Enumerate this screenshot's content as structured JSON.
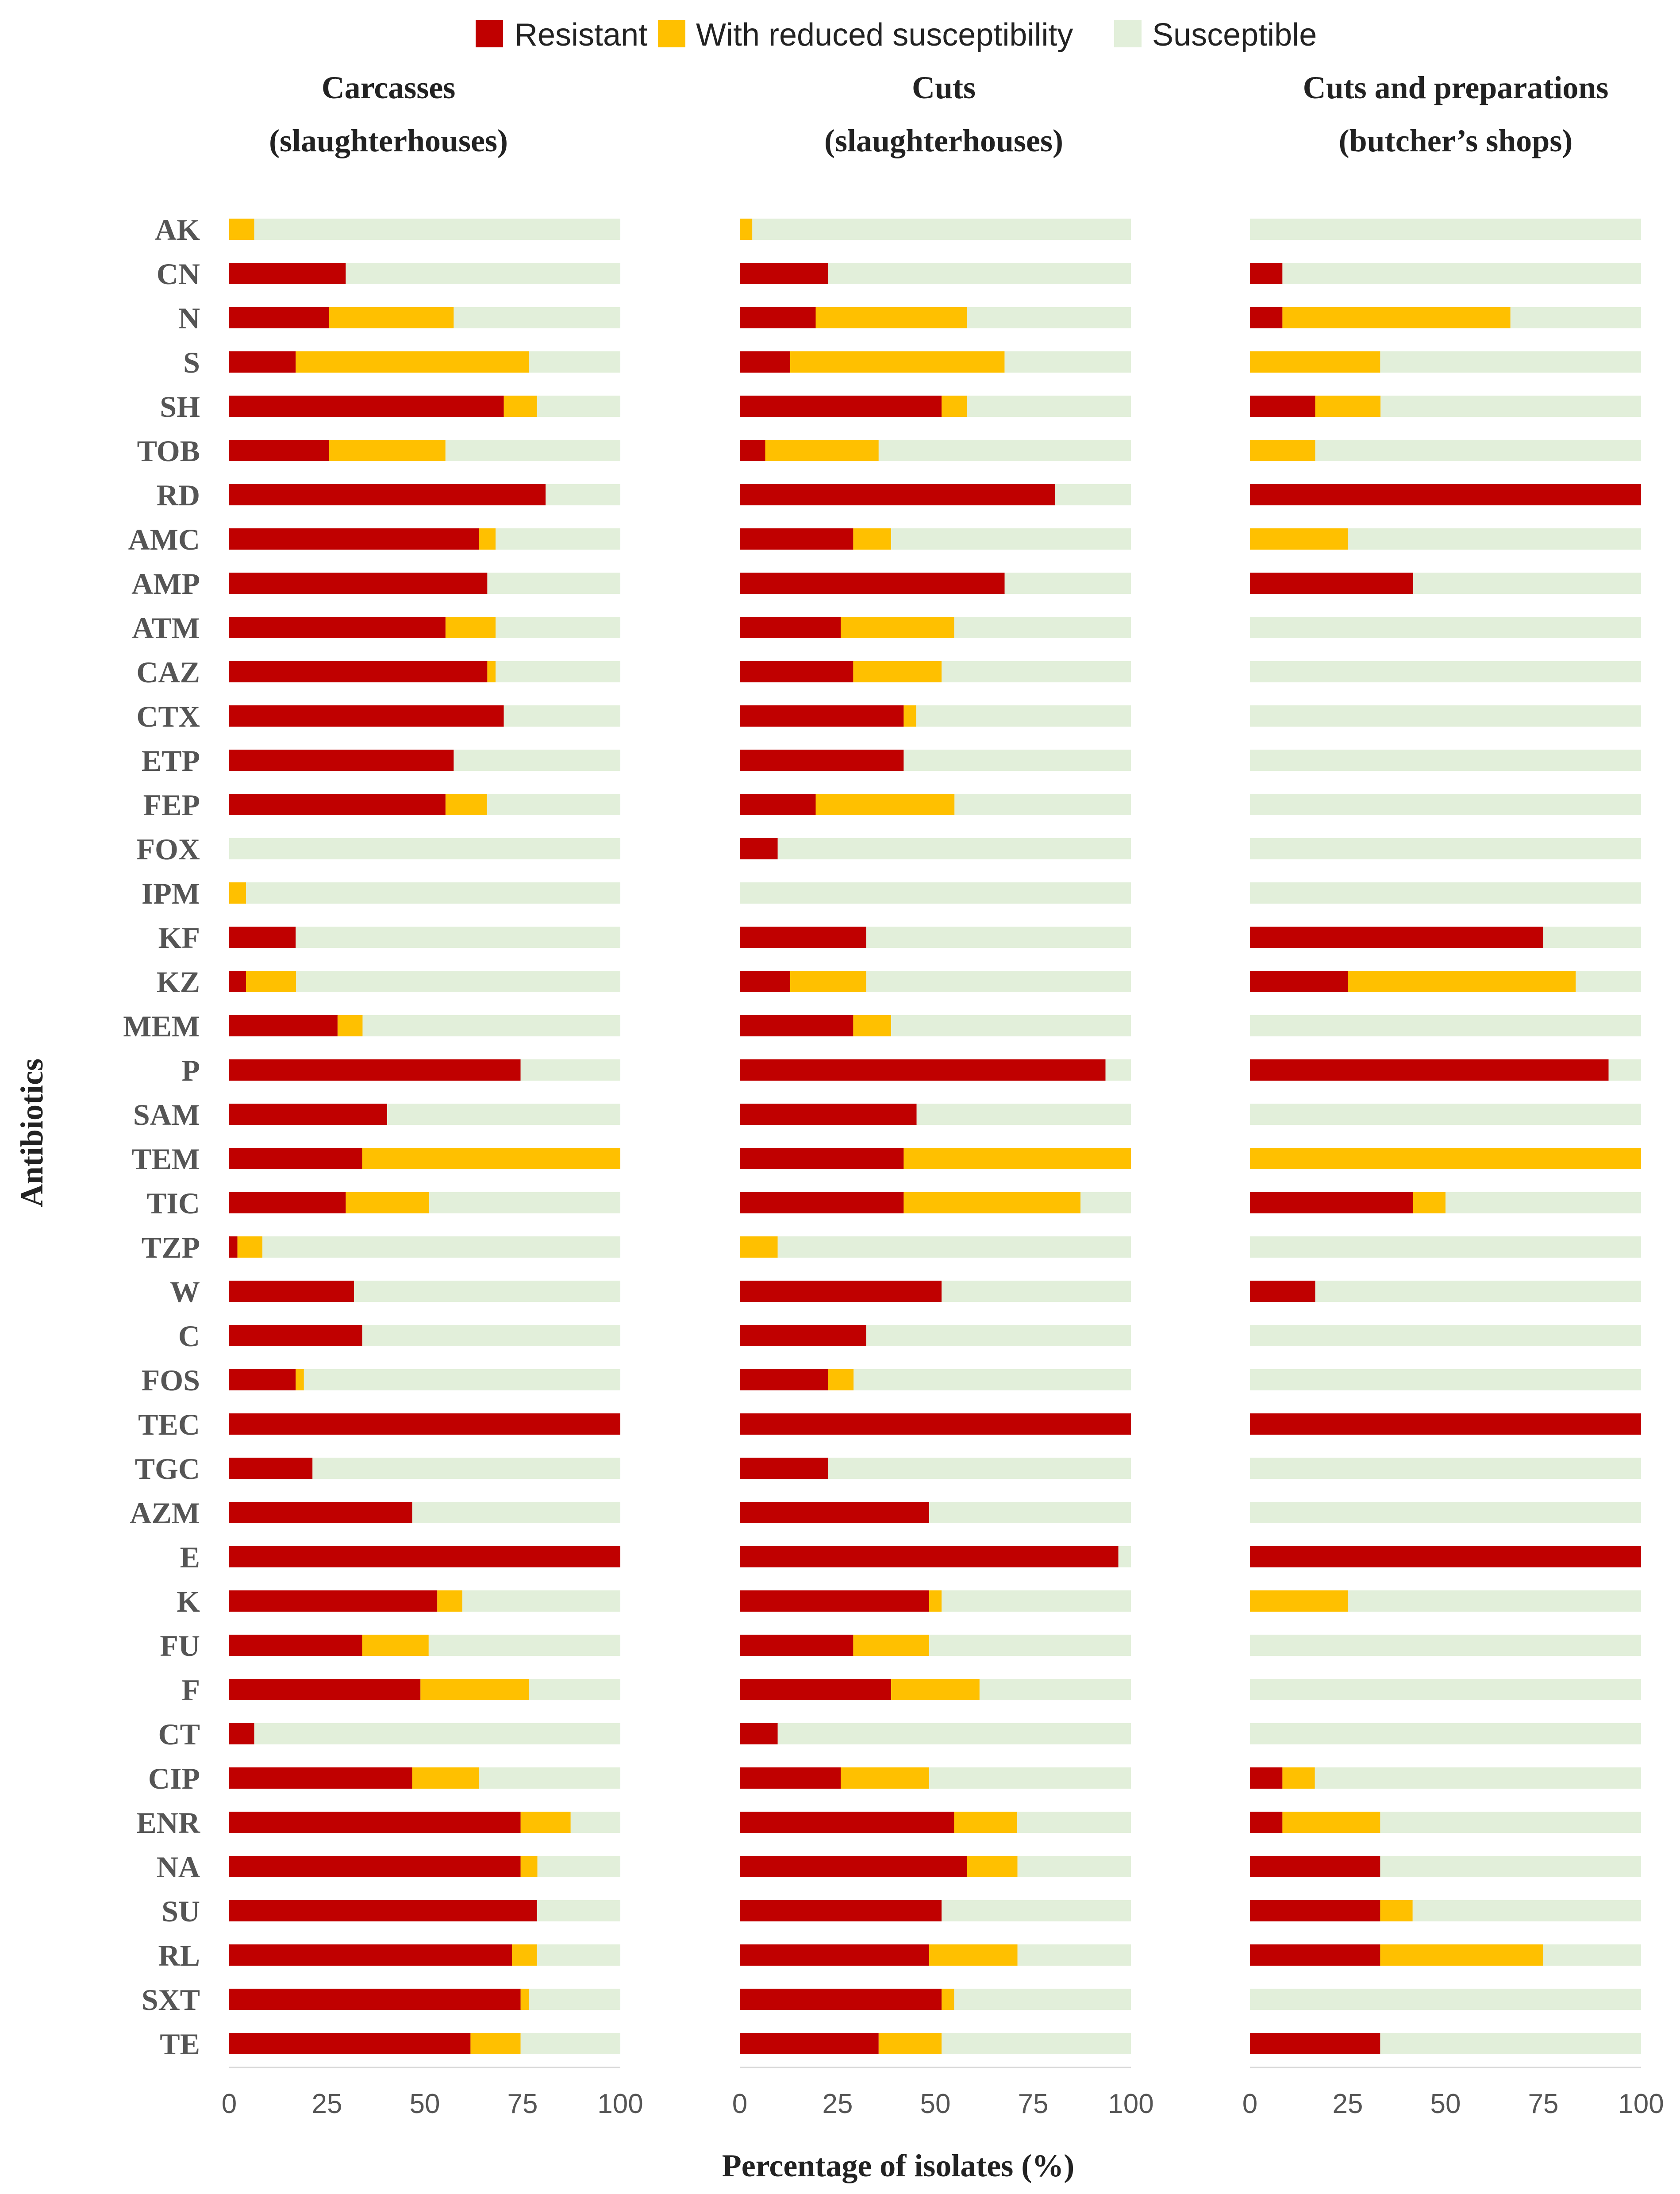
{
  "chart_data": {
    "type": "bar",
    "orientation": "horizontal",
    "stacked": true,
    "xlabel": "Percentage of isolates (%)",
    "ylabel": "Antibiotics",
    "xlim": [
      0,
      100
    ],
    "xticks": [
      "0",
      "25",
      "50",
      "75",
      "100"
    ],
    "legend": {
      "placement": "top",
      "entries": [
        {
          "name": "Resistant",
          "color": "#C00000"
        },
        {
          "name": "With reduced susceptibility",
          "color": "#FFC000"
        },
        {
          "name": "Susceptible",
          "color": "#E2EFDA"
        }
      ]
    },
    "categories": [
      "AK",
      "CN",
      "N",
      "S",
      "SH",
      "TOB",
      "RD",
      "AMC",
      "AMP",
      "ATM",
      "CAZ",
      "CTX",
      "ETP",
      "FEP",
      "FOX",
      "IPM",
      "KF",
      "KZ",
      "MEM",
      "P",
      "SAM",
      "TEM",
      "TIC",
      "TZP",
      "W",
      "C",
      "FOS",
      "TEC",
      "TGC",
      "AZM",
      "E",
      "K",
      "FU",
      "F",
      "CT",
      "CIP",
      "ENR",
      "NA",
      "SU",
      "RL",
      "SXT",
      "TE"
    ],
    "panels": [
      {
        "title_line1": "Carcasses",
        "title_line2": "(slaughterhouses)",
        "series": [
          {
            "name": "Resistant",
            "values": [
              0,
              29.8,
              25.5,
              17,
              70.2,
              25.5,
              80.9,
              63.8,
              66,
              55.3,
              66,
              70.2,
              57.4,
              55.3,
              0,
              0,
              17,
              4.3,
              27.7,
              74.5,
              40.4,
              34,
              29.8,
              2.1,
              31.9,
              34,
              17,
              100,
              21.3,
              46.8,
              100,
              53.2,
              34,
              48.9,
              6.4,
              46.8,
              74.5,
              74.5,
              78.7,
              72.3,
              74.5,
              61.7
            ]
          },
          {
            "name": "With reduced susceptibility",
            "values": [
              6.4,
              0,
              31.9,
              59.6,
              8.5,
              29.8,
              0,
              4.3,
              0,
              12.8,
              2.1,
              0,
              0,
              10.6,
              0,
              4.3,
              0,
              12.8,
              6.4,
              0,
              0,
              66,
              21.3,
              6.4,
              0,
              0,
              2.1,
              0,
              0,
              0,
              0,
              6.4,
              17,
              27.7,
              0,
              17,
              12.8,
              4.3,
              0,
              6.4,
              2.1,
              12.8
            ]
          }
        ]
      },
      {
        "title_line1": "Cuts",
        "title_line2": "(slaughterhouses)",
        "series": [
          {
            "name": "Resistant",
            "values": [
              0,
              22.6,
              19.4,
              12.9,
              51.6,
              6.5,
              80.6,
              29,
              67.7,
              25.8,
              29,
              41.9,
              41.9,
              19.4,
              9.7,
              0,
              32.3,
              12.9,
              29,
              93.5,
              45.2,
              41.9,
              41.9,
              0,
              51.6,
              32.3,
              22.6,
              100,
              22.6,
              48.4,
              96.8,
              48.4,
              29,
              38.7,
              9.7,
              25.8,
              54.8,
              58.1,
              51.6,
              48.4,
              51.6,
              35.5
            ]
          },
          {
            "name": "With reduced susceptibility",
            "values": [
              3.2,
              0,
              38.7,
              54.8,
              6.5,
              29,
              0,
              9.7,
              0,
              29,
              22.6,
              3.2,
              0,
              35.5,
              0,
              0,
              0,
              19.4,
              9.7,
              0,
              0,
              58.1,
              45.2,
              9.7,
              0,
              0,
              6.5,
              0,
              0,
              0,
              0,
              3.2,
              19.4,
              22.6,
              0,
              22.6,
              16.1,
              12.9,
              0,
              22.6,
              3.2,
              16.1
            ]
          }
        ]
      },
      {
        "title_line1": "Cuts and preparations",
        "title_line2": "(butcher’s shops)",
        "series": [
          {
            "name": "Resistant",
            "values": [
              0,
              8.3,
              8.3,
              0,
              16.7,
              0,
              100,
              0,
              41.7,
              0,
              0,
              0,
              0,
              0,
              0,
              0,
              75,
              25,
              0,
              91.7,
              0,
              0,
              41.7,
              0,
              16.7,
              0,
              0,
              100,
              0,
              0,
              100,
              0,
              0,
              0,
              0,
              8.3,
              8.3,
              33.3,
              33.3,
              33.3,
              0,
              33.3
            ]
          },
          {
            "name": "With reduced susceptibility",
            "values": [
              0,
              0,
              58.3,
              33.3,
              16.7,
              16.7,
              0,
              25,
              0,
              0,
              0,
              0,
              0,
              0,
              0,
              0,
              0,
              58.3,
              0,
              0,
              0,
              100,
              8.3,
              0,
              0,
              0,
              0,
              0,
              0,
              0,
              0,
              25,
              0,
              0,
              0,
              8.3,
              25,
              0,
              8.3,
              41.7,
              0,
              0
            ]
          }
        ]
      }
    ]
  }
}
